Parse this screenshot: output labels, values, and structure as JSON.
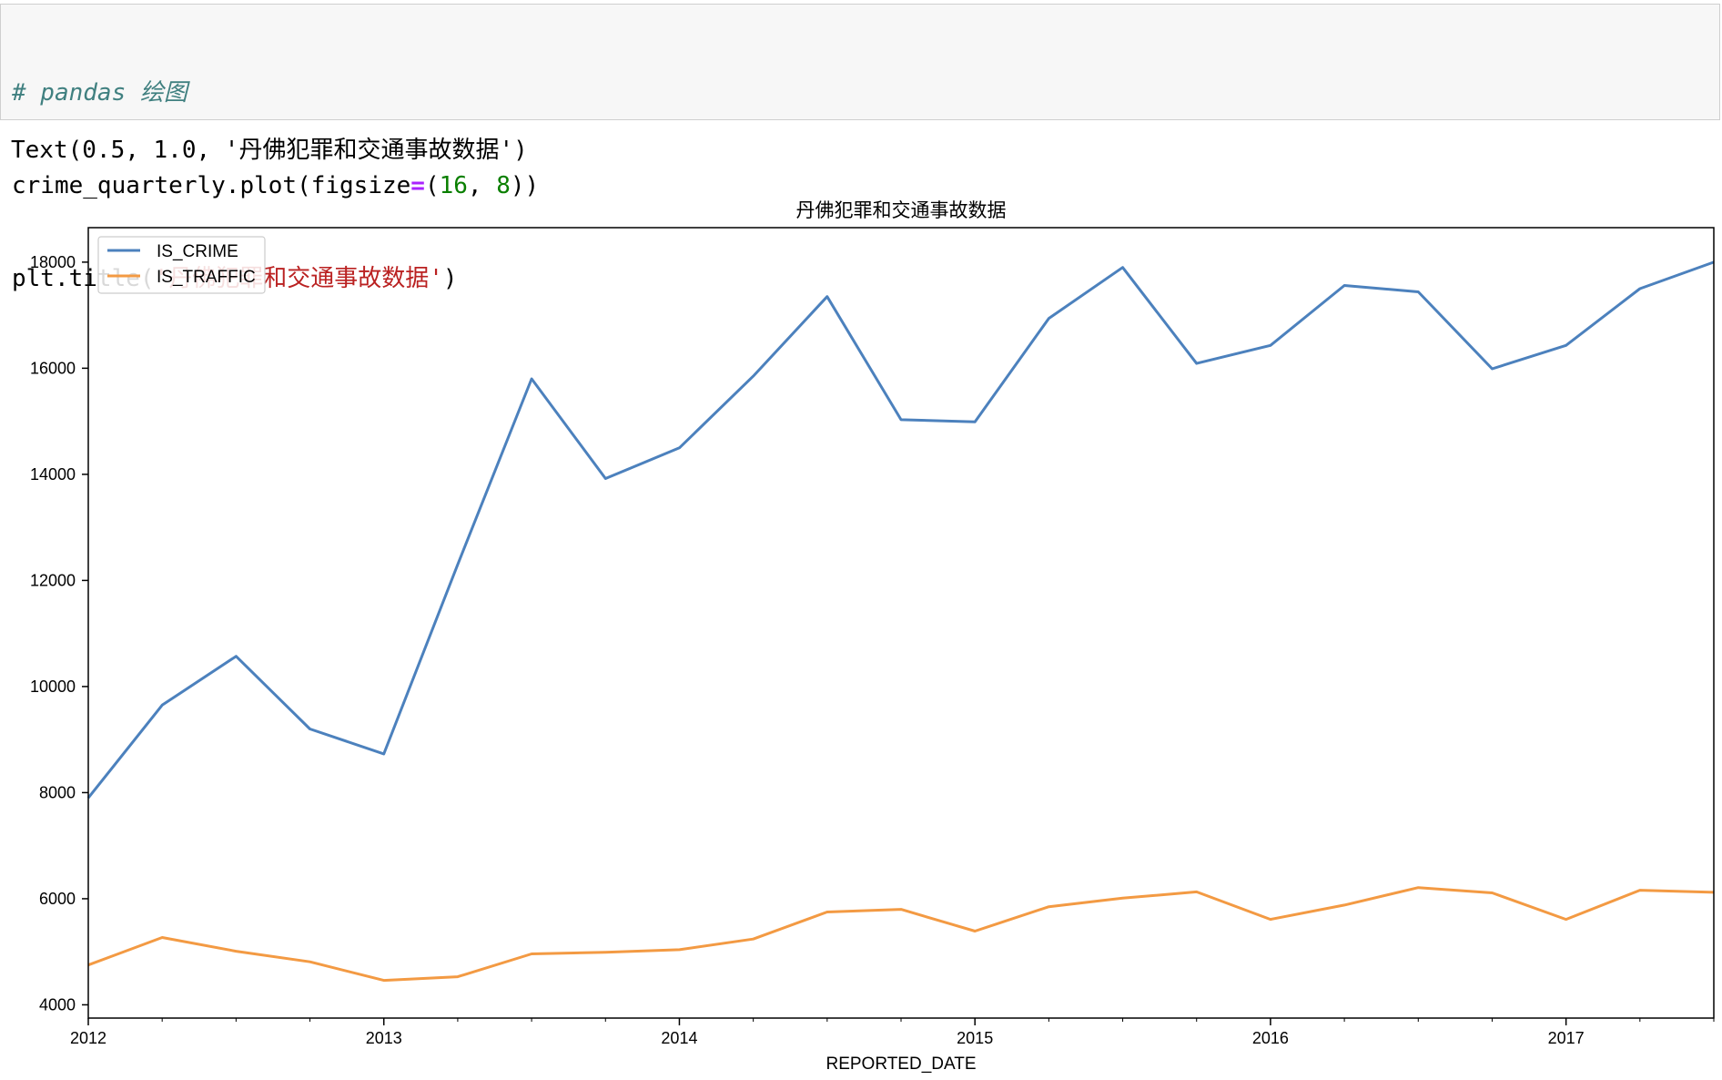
{
  "code_cell": {
    "comment": "# pandas 绘图",
    "line2_prefix": "crime_quarterly.plot(figsize",
    "line2_eq": "=",
    "line2_paren": "(",
    "line2_num1": "16",
    "line2_comma": ", ",
    "line2_num2": "8",
    "line2_suffix": "))",
    "line3_prefix": "plt.title(",
    "line3_str": "'丹佛犯罪和交通事故数据'",
    "line3_suffix": ")"
  },
  "output": {
    "text": "Text(0.5, 1.0, '丹佛犯罪和交通事故数据')"
  },
  "colors": {
    "crime": "#4c81bd",
    "traffic": "#f39a43",
    "axis": "#000000"
  },
  "chart_data": {
    "type": "line",
    "title": "丹佛犯罪和交通事故数据",
    "xlabel": "REPORTED_DATE",
    "ylabel": "",
    "x": [
      "2012Q1",
      "2012Q2",
      "2012Q3",
      "2012Q4",
      "2013Q1",
      "2013Q2",
      "2013Q3",
      "2013Q4",
      "2014Q1",
      "2014Q2",
      "2014Q3",
      "2014Q4",
      "2015Q1",
      "2015Q2",
      "2015Q3",
      "2015Q4",
      "2016Q1",
      "2016Q2",
      "2016Q3",
      "2016Q4",
      "2017Q1",
      "2017Q2",
      "2017Q3"
    ],
    "x_tick_labels": [
      "2012",
      "2013",
      "2014",
      "2015",
      "2016",
      "2017"
    ],
    "y_ticks": [
      "4000",
      "6000",
      "8000",
      "10000",
      "12000",
      "14000",
      "16000",
      "18000"
    ],
    "ylim": [
      3750,
      18650
    ],
    "legend_position": "upper-left",
    "grid": false,
    "series": [
      {
        "name": "IS_CRIME",
        "color": "#4c81bd",
        "values": [
          7900,
          9650,
          10570,
          9200,
          8730,
          12300,
          15800,
          13920,
          14500,
          15850,
          17350,
          15030,
          14990,
          16940,
          17900,
          16090,
          16430,
          17560,
          17440,
          15990,
          16430,
          17500,
          18000
        ]
      },
      {
        "name": "IS_TRAFFIC",
        "color": "#f39a43",
        "values": [
          4750,
          5270,
          5010,
          4810,
          4460,
          4530,
          4960,
          4990,
          5040,
          5240,
          5750,
          5800,
          5390,
          5850,
          6010,
          6130,
          5610,
          5880,
          6210,
          6110,
          5610,
          6160,
          6120
        ]
      }
    ]
  }
}
